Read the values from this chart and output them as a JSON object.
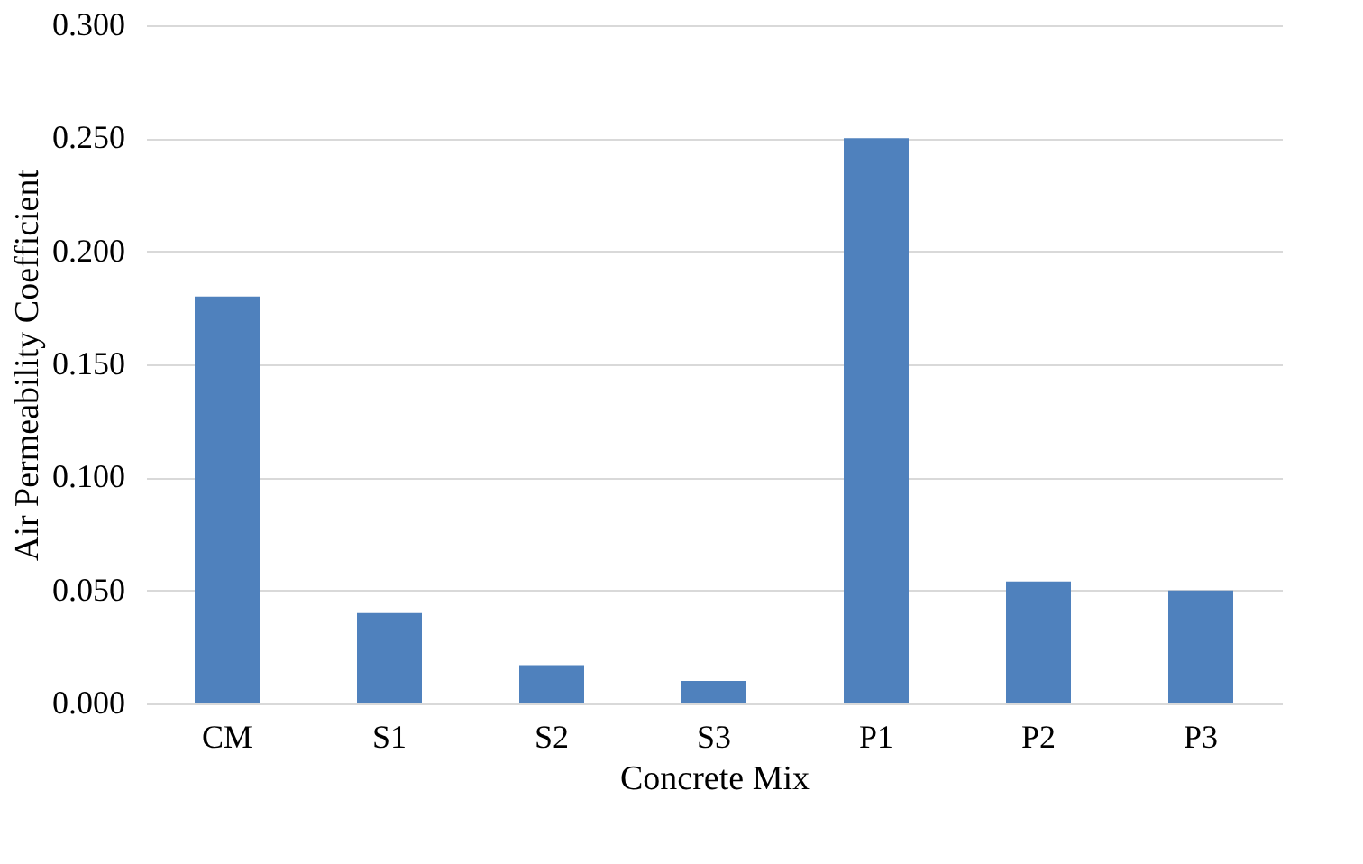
{
  "chart_data": {
    "type": "bar",
    "xlabel": "Concrete Mix",
    "ylabel": "Air Permeability Coefficient",
    "categories": [
      "CM",
      "S1",
      "S2",
      "S3",
      "P1",
      "P2",
      "P3"
    ],
    "values": [
      0.18,
      0.04,
      0.017,
      0.01,
      0.25,
      0.054,
      0.05
    ],
    "color": "#4f81bd",
    "ylim": [
      0,
      0.3
    ],
    "yticks": [
      {
        "value": 0,
        "label": "0.000"
      },
      {
        "value": 0.05,
        "label": "0.050"
      },
      {
        "value": 0.1,
        "label": "0.100"
      },
      {
        "value": 0.15,
        "label": "0.150"
      },
      {
        "value": 0.2,
        "label": "0.200"
      },
      {
        "value": 0.25,
        "label": "0.250"
      },
      {
        "value": 0.3,
        "label": "0.300"
      }
    ],
    "grid": "y"
  }
}
